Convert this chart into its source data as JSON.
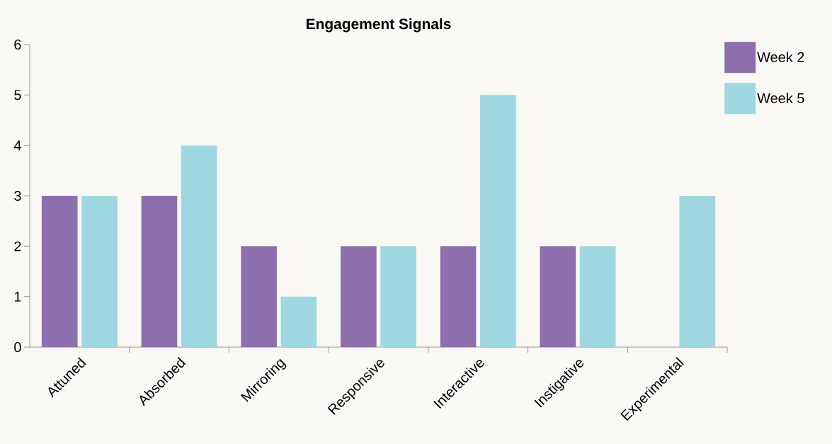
{
  "chart_data": {
    "type": "bar",
    "title": "Engagement Signals",
    "categories": [
      "Attuned",
      "Absorbed",
      "Mirroring",
      "Responsive",
      "Interactive",
      "Instigative",
      "Experimental"
    ],
    "series": [
      {
        "name": "Week 2",
        "color": "#8e6fad",
        "values": [
          3,
          3,
          2,
          2,
          2,
          2,
          0
        ]
      },
      {
        "name": "Week 5",
        "color": "#9fd8e0",
        "values": [
          3,
          4,
          1,
          2,
          5,
          2,
          3
        ]
      }
    ],
    "ylim": [
      0,
      6
    ],
    "yticks": [
      0,
      1,
      2,
      3,
      4,
      5,
      6
    ],
    "legend": "top right"
  }
}
